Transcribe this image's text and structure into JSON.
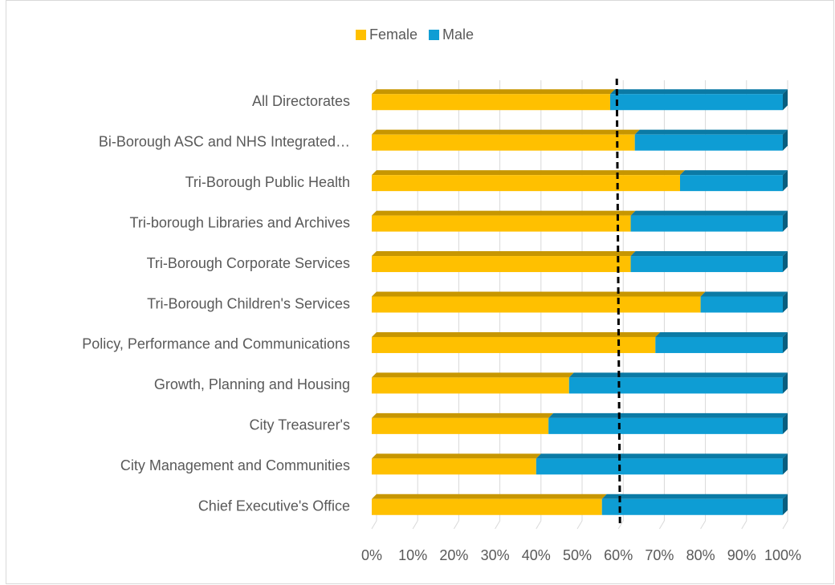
{
  "chart_data": {
    "type": "stacked_bar_horizontal",
    "categories": [
      "All Directorates",
      "Bi-Borough ASC and NHS Integrated…",
      "Tri-Borough Public Health",
      "Tri-borough Libraries and Archives",
      "Tri-Borough Corporate Services",
      "Tri-Borough Children's Services",
      "Policy, Performance and Communications",
      "Growth, Planning and Housing",
      "City Treasurer's",
      "City Management and Communities",
      "Chief Executive's Office"
    ],
    "series": [
      {
        "name": "Female",
        "color": "#ffc000",
        "values": [
          58,
          64,
          75,
          63,
          63,
          80,
          69,
          48,
          43,
          40,
          56
        ]
      },
      {
        "name": "Male",
        "color": "#0e9dd4",
        "values": [
          42,
          36,
          25,
          37,
          37,
          20,
          31,
          52,
          57,
          60,
          44
        ]
      }
    ],
    "xlim": [
      0,
      100
    ],
    "xticks": [
      {
        "value": 0,
        "label": "0%"
      },
      {
        "value": 10,
        "label": "10%"
      },
      {
        "value": 20,
        "label": "20%"
      },
      {
        "value": 30,
        "label": "30%"
      },
      {
        "value": 40,
        "label": "40%"
      },
      {
        "value": 50,
        "label": "50%"
      },
      {
        "value": 60,
        "label": "60%"
      },
      {
        "value": 70,
        "label": "70%"
      },
      {
        "value": 80,
        "label": "80%"
      },
      {
        "value": 90,
        "label": "90%"
      },
      {
        "value": 100,
        "label": "100%"
      }
    ],
    "reference_line": 60,
    "grid": true,
    "legend": "top"
  }
}
